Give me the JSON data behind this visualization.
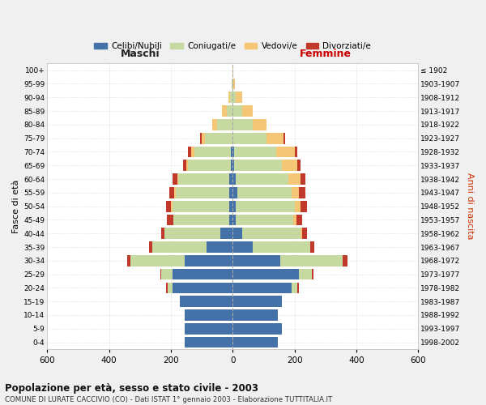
{
  "age_groups": [
    "0-4",
    "5-9",
    "10-14",
    "15-19",
    "20-24",
    "25-29",
    "30-34",
    "35-39",
    "40-44",
    "45-49",
    "50-54",
    "55-59",
    "60-64",
    "65-69",
    "70-74",
    "75-79",
    "80-84",
    "85-89",
    "90-94",
    "95-99",
    "100+"
  ],
  "birth_years": [
    "1998-2002",
    "1993-1997",
    "1988-1992",
    "1983-1987",
    "1978-1982",
    "1973-1977",
    "1968-1972",
    "1963-1967",
    "1958-1962",
    "1953-1957",
    "1948-1952",
    "1943-1947",
    "1938-1942",
    "1933-1937",
    "1928-1932",
    "1923-1927",
    "1918-1922",
    "1913-1917",
    "1908-1912",
    "1903-1907",
    "≤ 1902"
  ],
  "males": {
    "celibi": [
      155,
      155,
      155,
      170,
      195,
      195,
      155,
      85,
      40,
      12,
      10,
      10,
      10,
      5,
      5,
      0,
      0,
      0,
      0,
      0,
      0
    ],
    "coniugati": [
      0,
      0,
      0,
      0,
      15,
      35,
      175,
      175,
      180,
      180,
      185,
      175,
      165,
      140,
      120,
      90,
      50,
      20,
      8,
      2,
      0
    ],
    "vedovi": [
      0,
      0,
      0,
      0,
      0,
      0,
      0,
      0,
      0,
      0,
      5,
      5,
      5,
      5,
      10,
      10,
      15,
      15,
      5,
      2,
      0
    ],
    "divorziati": [
      0,
      0,
      0,
      0,
      5,
      5,
      10,
      10,
      10,
      20,
      15,
      15,
      15,
      10,
      10,
      5,
      0,
      0,
      0,
      0,
      0
    ]
  },
  "females": {
    "nubili": [
      145,
      160,
      145,
      160,
      190,
      215,
      155,
      65,
      30,
      10,
      10,
      15,
      10,
      5,
      5,
      0,
      0,
      0,
      0,
      0,
      0
    ],
    "coniugate": [
      0,
      0,
      0,
      0,
      20,
      40,
      200,
      185,
      190,
      185,
      190,
      175,
      170,
      155,
      135,
      110,
      65,
      30,
      10,
      3,
      0
    ],
    "vedove": [
      0,
      0,
      0,
      0,
      0,
      0,
      0,
      0,
      5,
      10,
      20,
      25,
      40,
      50,
      60,
      55,
      45,
      35,
      20,
      5,
      2
    ],
    "divorziate": [
      0,
      0,
      0,
      0,
      5,
      5,
      15,
      15,
      15,
      20,
      20,
      20,
      15,
      10,
      10,
      5,
      0,
      0,
      0,
      0,
      0
    ]
  },
  "color_celibi": "#4472a8",
  "color_coniugati": "#c5d9a0",
  "color_vedovi": "#f5c675",
  "color_divorziati": "#c0392b",
  "xlim": 600,
  "title_main": "Popolazione per età, sesso e stato civile - 2003",
  "title_sub": "COMUNE DI LURATE CACCIVIO (CO) - Dati ISTAT 1° gennaio 2003 - Elaborazione TUTTITALIA.IT",
  "ylabel": "Fasce di età",
  "ylabel_right": "Anni di nascita",
  "label_maschi": "Maschi",
  "label_femmine": "Femmine",
  "legend_celibi": "Celibi/Nubili",
  "legend_coniugati": "Coniugati/e",
  "legend_vedovi": "Vedovi/e",
  "legend_divorziati": "Divorziati/e",
  "bg_color": "#f0f0f0",
  "plot_bg": "#ffffff"
}
